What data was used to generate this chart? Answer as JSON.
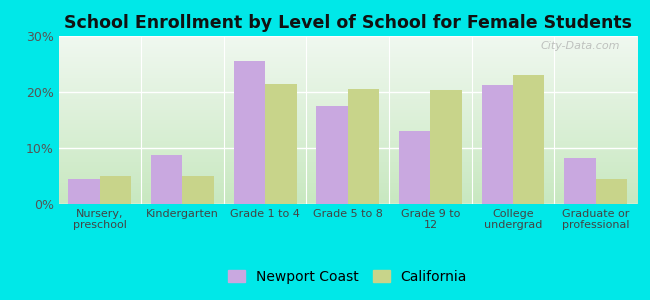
{
  "title": "School Enrollment by Level of School for Female Students",
  "categories": [
    "Nursery,\npreschool",
    "Kindergarten",
    "Grade 1 to 4",
    "Grade 5 to 8",
    "Grade 9 to\n12",
    "College\nundergrad",
    "Graduate or\nprofessional"
  ],
  "newport_coast": [
    4.5,
    8.8,
    25.5,
    17.5,
    13.0,
    21.3,
    8.2
  ],
  "california": [
    5.0,
    5.0,
    21.5,
    20.5,
    20.3,
    23.0,
    4.5
  ],
  "newport_color": "#c9a8e0",
  "california_color": "#c8d48a",
  "background_color": "#00e8e8",
  "plot_bg_top": "#e8f5e8",
  "plot_bg_bottom": "#d0ecd0",
  "ylim": [
    0,
    30
  ],
  "yticks": [
    0,
    10,
    20,
    30
  ],
  "yticklabels": [
    "0%",
    "10%",
    "20%",
    "30%"
  ],
  "legend_labels": [
    "Newport Coast",
    "California"
  ],
  "watermark": "City-Data.com"
}
